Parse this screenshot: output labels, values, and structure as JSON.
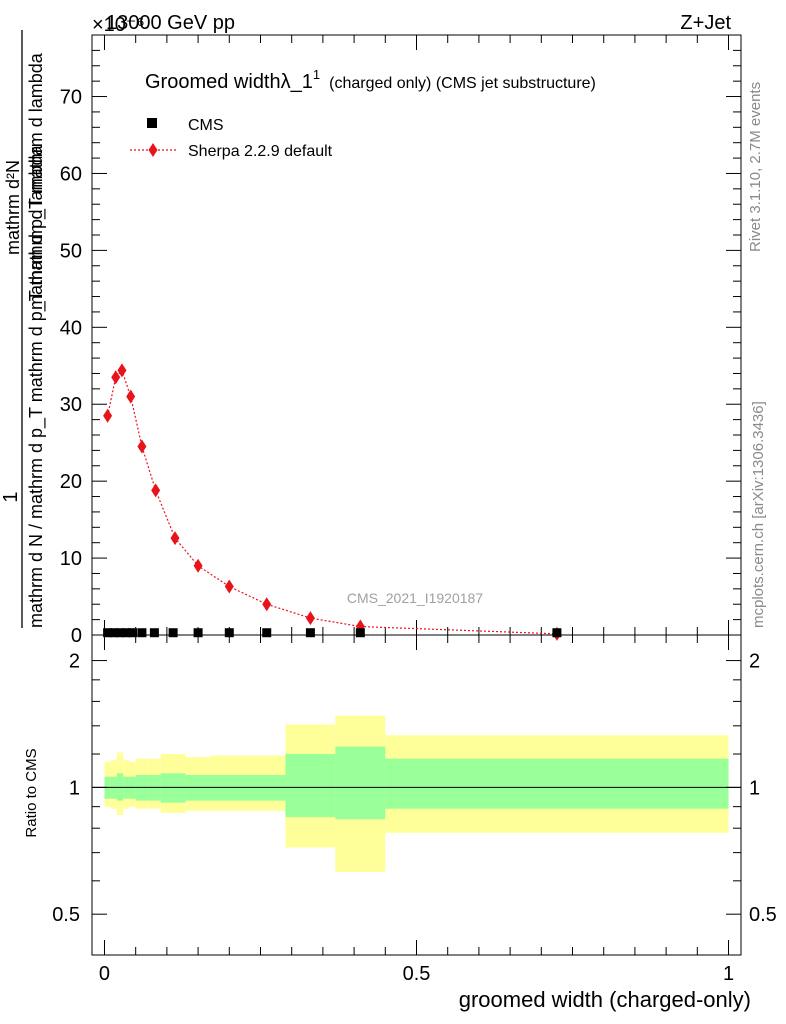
{
  "header": {
    "left": "13000 GeV pp",
    "right": "Z+Jet",
    "exponent_label": "×10⁻⁶"
  },
  "side_labels": {
    "rivet": "Rivet 3.1.10,  2.7M events",
    "mcplots": "mcplots.cern.ch [arXiv:1306.3436]"
  },
  "watermark": "CMS_2021_I1920187",
  "colors": {
    "sherpa": "#e8141c",
    "cms": "#000000",
    "band_inner": "#99ff99",
    "band_outer": "#ffff99"
  },
  "chart_data": [
    {
      "type": "scatter",
      "title": "Groomed widthλ_1¹ (charged only) (CMS jet substructure)",
      "title_parts": {
        "main": "Groomed widthλ_1",
        "sup": "1",
        "rest": "(charged only) (CMS jet substructure)"
      },
      "ylabel_numerator": "1",
      "ylabel_denominator": "mathrm d N / mathrm d p_T mathrm d p_T mathrm d lambda",
      "ylabel_top": "mathrm d²N",
      "ylabel_mid": "mathrm d p_T mathrm d lambda",
      "xlim": [
        -0.02,
        1.02
      ],
      "ylim": [
        0,
        78
      ],
      "yticks": [
        0,
        10,
        20,
        30,
        40,
        50,
        60,
        70
      ],
      "ytick_labels": [
        "0",
        "10",
        "20",
        "30",
        "40",
        "50",
        "60",
        "70"
      ],
      "legend_position": "top-left",
      "series": [
        {
          "name": "CMS",
          "marker": "square",
          "x": [
            0.005,
            0.015,
            0.025,
            0.035,
            0.045,
            0.06,
            0.08,
            0.11,
            0.15,
            0.2,
            0.26,
            0.33,
            0.41,
            0.725
          ],
          "y": [
            0.1,
            0.1,
            0.1,
            0.1,
            0.1,
            0.1,
            0.1,
            0.1,
            0.1,
            0.1,
            0.1,
            0.1,
            0.1,
            0.1
          ]
        },
        {
          "name": "Sherpa 2.2.9 default",
          "marker": "diamond",
          "x": [
            0.005,
            0.018,
            0.028,
            0.042,
            0.06,
            0.082,
            0.113,
            0.15,
            0.2,
            0.26,
            0.33,
            0.41,
            0.725
          ],
          "y": [
            28.5,
            33.5,
            34.4,
            31.0,
            24.5,
            18.8,
            12.6,
            9.0,
            6.3,
            4.0,
            2.2,
            1.1,
            0.15
          ]
        }
      ]
    },
    {
      "type": "area",
      "ylabel": "Ratio to CMS",
      "xlabel": "groomed width (charged-only)",
      "xlim": [
        -0.02,
        1.02
      ],
      "ylim": [
        0.4,
        2.3
      ],
      "yscale": "log",
      "xticks": [
        0,
        0.5,
        1
      ],
      "xtick_labels": [
        "0",
        "0.5",
        "1"
      ],
      "yticks": [
        0.5,
        1,
        2
      ],
      "ytick_labels": [
        "0.5",
        "1",
        "2"
      ],
      "bin_edges": [
        0,
        0.01,
        0.02,
        0.03,
        0.04,
        0.05,
        0.07,
        0.09,
        0.13,
        0.17,
        0.23,
        0.29,
        0.37,
        0.45,
        1.0
      ],
      "inner_band_low": [
        0.94,
        0.94,
        0.93,
        0.94,
        0.94,
        0.93,
        0.93,
        0.92,
        0.93,
        0.93,
        0.93,
        0.85,
        0.84,
        0.89
      ],
      "inner_band_high": [
        1.06,
        1.06,
        1.08,
        1.06,
        1.06,
        1.07,
        1.07,
        1.08,
        1.07,
        1.07,
        1.07,
        1.2,
        1.25,
        1.17
      ],
      "outer_band_low": [
        0.9,
        0.89,
        0.86,
        0.89,
        0.9,
        0.89,
        0.89,
        0.87,
        0.88,
        0.88,
        0.88,
        0.72,
        0.63,
        0.78
      ],
      "outer_band_high": [
        1.15,
        1.16,
        1.21,
        1.16,
        1.15,
        1.17,
        1.17,
        1.2,
        1.18,
        1.19,
        1.19,
        1.41,
        1.48,
        1.33
      ],
      "reference_line": 1
    }
  ]
}
